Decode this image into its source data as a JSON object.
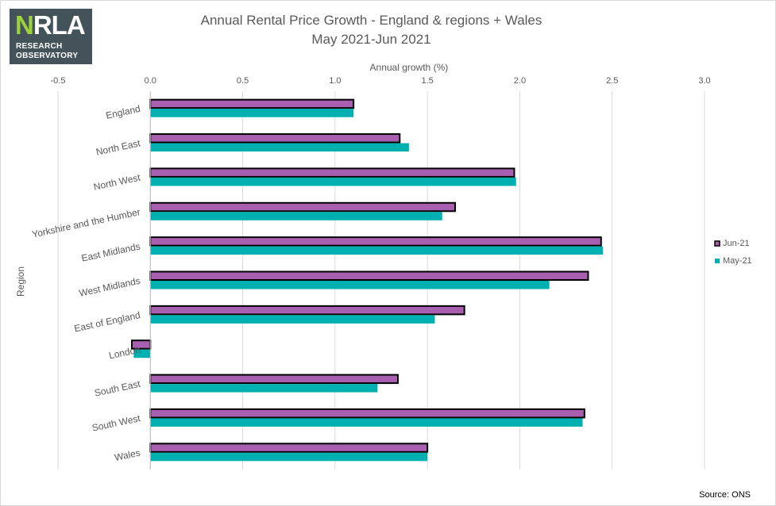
{
  "logo": {
    "mark_n": "N",
    "mark_rest": "RLA",
    "line1": "RESEARCH",
    "line2": "OBSERVATORY"
  },
  "source": "Source: ONS",
  "chart_data": {
    "type": "bar",
    "orientation": "horizontal",
    "title": "Annual Rental Price Growth - England & regions + Wales",
    "subtitle": "May 2021-Jun 2021",
    "xlabel": "Annual growth (%)",
    "ylabel": "Region",
    "xlim": [
      -0.5,
      3.0
    ],
    "x_ticks": [
      -0.5,
      0.0,
      0.5,
      1.0,
      1.5,
      2.0,
      2.5,
      3.0
    ],
    "x_tick_labels": [
      "-0.5",
      "0.0",
      "0.5",
      "1.0",
      "1.5",
      "2.0",
      "2.5",
      "3.0"
    ],
    "grid": "vertical",
    "legend_position": "right",
    "categories": [
      "England",
      "North East",
      "North West",
      "Yorkshire and the Humber",
      "East Midlands",
      "West Midlands",
      "East of England",
      "London",
      "South East",
      "South West",
      "Wales"
    ],
    "series": [
      {
        "name": "Jun-21",
        "color": "#a95fb0",
        "outline": "#000000",
        "values": [
          1.1,
          1.35,
          1.97,
          1.65,
          2.44,
          2.37,
          1.7,
          -0.1,
          1.34,
          2.35,
          1.5
        ]
      },
      {
        "name": "May-21",
        "color": "#00b0b0",
        "outline": "none",
        "values": [
          1.1,
          1.4,
          1.98,
          1.58,
          2.45,
          2.16,
          1.54,
          -0.09,
          1.23,
          2.34,
          1.5
        ]
      }
    ]
  }
}
